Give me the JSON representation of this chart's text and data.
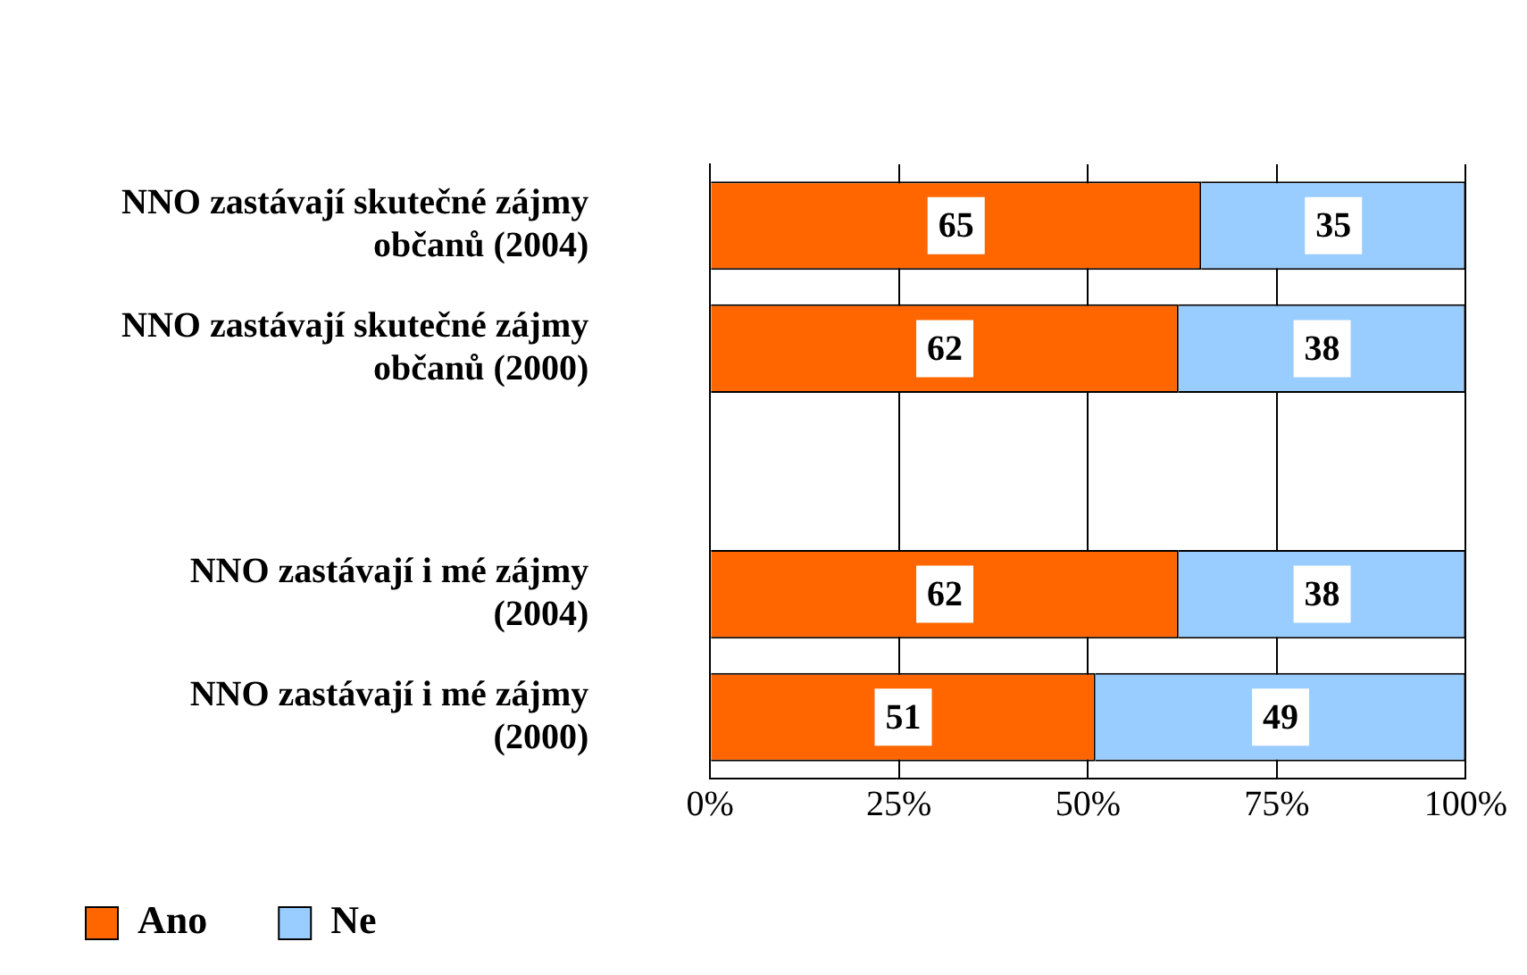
{
  "chart_data": {
    "type": "bar",
    "orientation": "horizontal",
    "stacked": true,
    "categories": [
      "NNO zastávají skutečné zájmy občanů (2004)",
      "NNO zastávají skutečné zájmy občanů (2000)",
      null,
      "NNO zastávají i mé zájmy (2004)",
      "NNO zastávají i mé zájmy (2000)"
    ],
    "series": [
      {
        "name": "Ano",
        "color": "#ff6600",
        "values": [
          65,
          62,
          null,
          62,
          51
        ]
      },
      {
        "name": "Ne",
        "color": "#99ccff",
        "values": [
          35,
          38,
          null,
          38,
          49
        ]
      }
    ],
    "xlim": [
      0,
      100
    ],
    "xticks": [
      {
        "value": 0,
        "label": "0%"
      },
      {
        "value": 25,
        "label": "25%"
      },
      {
        "value": 50,
        "label": "50%"
      },
      {
        "value": 75,
        "label": "75%"
      },
      {
        "value": 100,
        "label": "100%"
      }
    ],
    "grid": "x",
    "legend": "bottom",
    "data_labels": true
  }
}
